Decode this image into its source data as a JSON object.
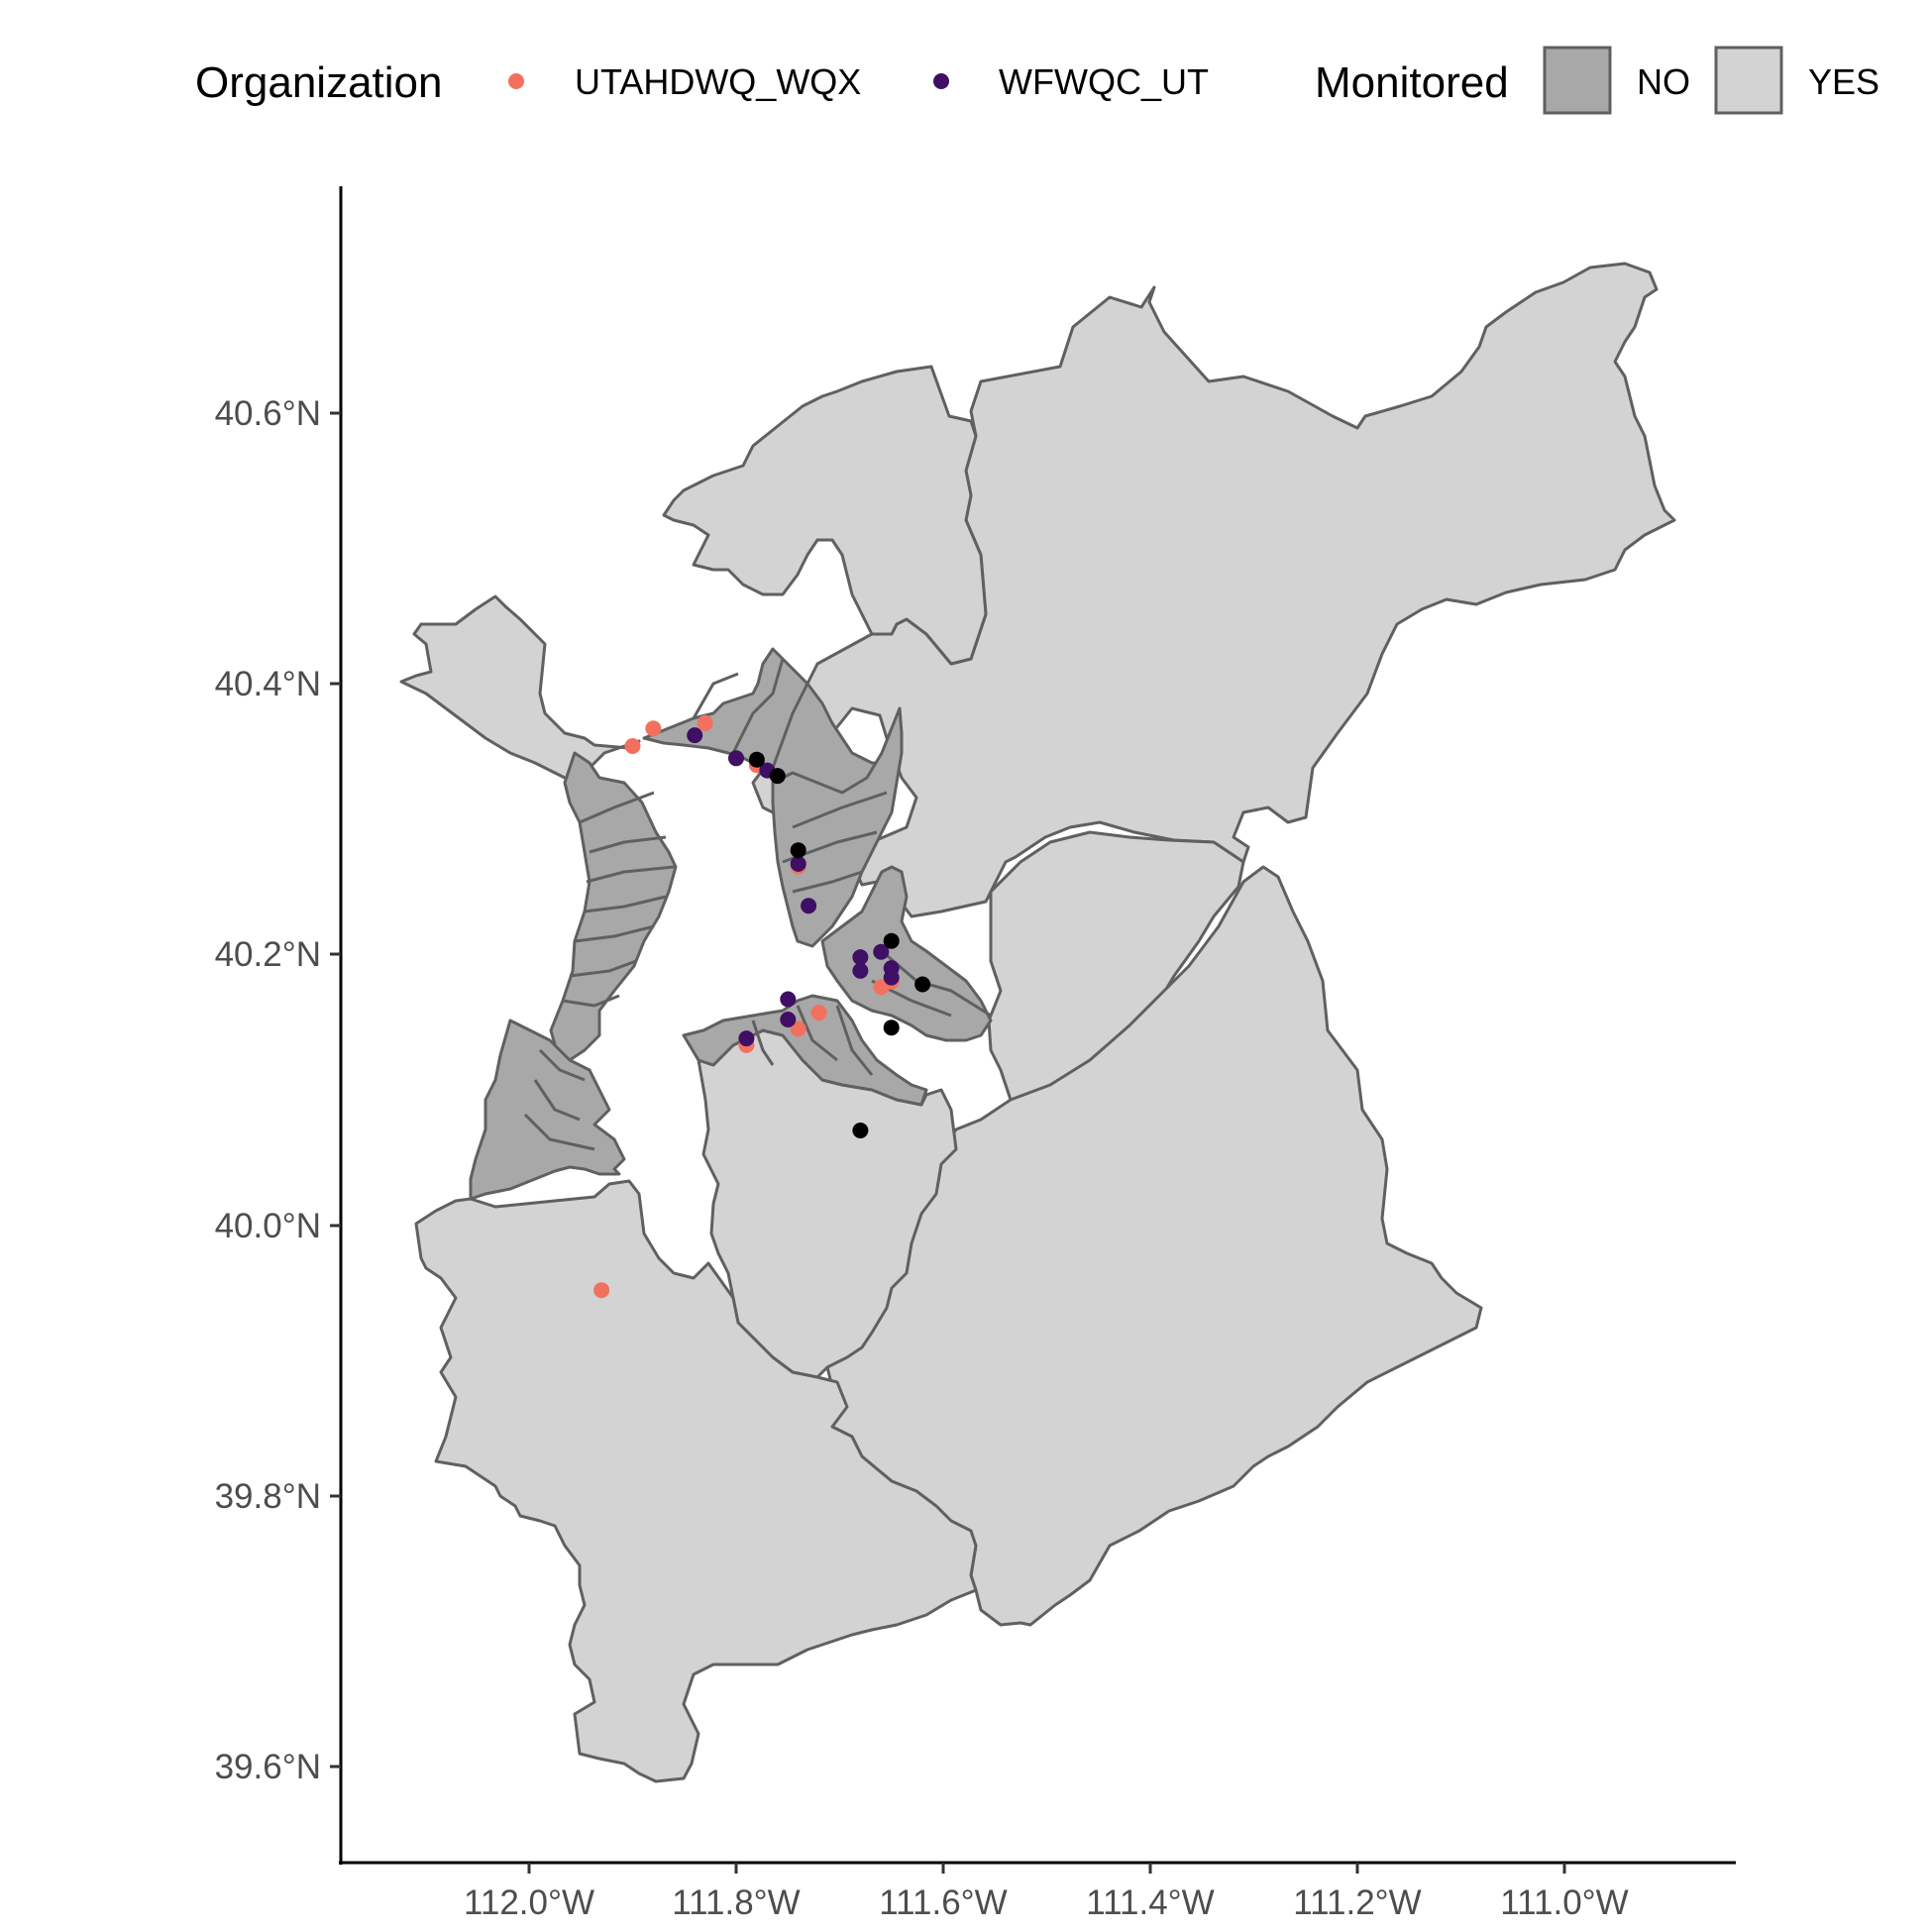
{
  "legend": {
    "organization": {
      "title": "Organization",
      "entries": [
        {
          "label": "UTAHDWQ_WQX",
          "color": "#f3705e"
        },
        {
          "label": "WFWQC_UT",
          "color": "#3e0f64"
        }
      ]
    },
    "monitored": {
      "title": "Monitored",
      "entries": [
        {
          "label": "NO",
          "fill": "#a8a8a8"
        },
        {
          "label": "YES",
          "fill": "#d3d3d3"
        }
      ]
    }
  },
  "axes": {
    "y_ticks": [
      "40.6°N",
      "40.4°N",
      "40.2°N",
      "40.0°N",
      "39.8°N",
      "39.6°N"
    ],
    "x_ticks": [
      "112.0°W",
      "111.8°W",
      "111.6°W",
      "111.4°W",
      "111.2°W",
      "111.0°W"
    ]
  },
  "chart_data": {
    "type": "scatter",
    "map_type": "watershed map with monitoring sites",
    "xlim": [
      -112.18,
      -110.83
    ],
    "ylim": [
      39.53,
      40.77
    ],
    "x_ticks": [
      -112.0,
      -111.8,
      -111.6,
      -111.4,
      -111.2,
      -111.0
    ],
    "y_ticks": [
      40.6,
      40.4,
      40.2,
      40.0,
      39.8,
      39.6
    ],
    "grid": false,
    "legend_position": "top",
    "series": [
      {
        "name": "UTAHDWQ_WQX",
        "color": "#f3705e",
        "points": [
          [
            -111.9,
            40.354
          ],
          [
            -111.88,
            40.367
          ],
          [
            -111.83,
            40.371
          ],
          [
            -111.78,
            40.34
          ],
          [
            -111.74,
            40.265
          ],
          [
            -111.66,
            40.176
          ],
          [
            -111.65,
            40.18
          ],
          [
            -111.74,
            40.145
          ],
          [
            -111.72,
            40.157
          ],
          [
            -111.79,
            40.133
          ],
          [
            -111.93,
            39.952
          ]
        ]
      },
      {
        "name": "WFWQC_UT",
        "color": "#3e0f64",
        "points": [
          [
            -111.84,
            40.362
          ],
          [
            -111.8,
            40.345
          ],
          [
            -111.77,
            40.336
          ],
          [
            -111.74,
            40.267
          ],
          [
            -111.73,
            40.236
          ],
          [
            -111.68,
            40.198
          ],
          [
            -111.68,
            40.188
          ],
          [
            -111.66,
            40.202
          ],
          [
            -111.65,
            40.19
          ],
          [
            -111.65,
            40.183
          ],
          [
            -111.75,
            40.167
          ],
          [
            -111.75,
            40.152
          ],
          [
            -111.79,
            40.138
          ]
        ]
      },
      {
        "color": "#000000",
        "points": [
          [
            -111.78,
            40.344
          ],
          [
            -111.76,
            40.332
          ],
          [
            -111.74,
            40.277
          ],
          [
            -111.65,
            40.21
          ],
          [
            -111.62,
            40.178
          ],
          [
            -111.65,
            40.146
          ],
          [
            -111.68,
            40.07
          ]
        ]
      }
    ]
  }
}
